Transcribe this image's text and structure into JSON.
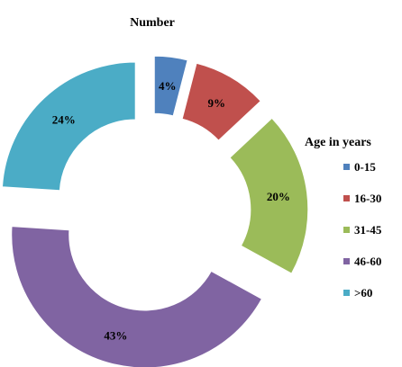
{
  "chart_data": {
    "type": "pie",
    "style": "exploded-donut",
    "title": "Number",
    "legend_title": "Age  in years",
    "legend_position": "right",
    "slices": [
      {
        "category": "0-15",
        "value": 4,
        "label": "4%",
        "color": "#4F81BD"
      },
      {
        "category": "16-30",
        "value": 9,
        "label": "9%",
        "color": "#C0504D"
      },
      {
        "category": "31-45",
        "value": 20,
        "label": "20%",
        "color": "#9BBB59"
      },
      {
        "category": "46-60",
        "value": 43,
        "label": "43%",
        "color": "#8064A2"
      },
      {
        "category": ">60",
        "value": 24,
        "label": "24%",
        "color": "#4BACC6"
      }
    ]
  }
}
